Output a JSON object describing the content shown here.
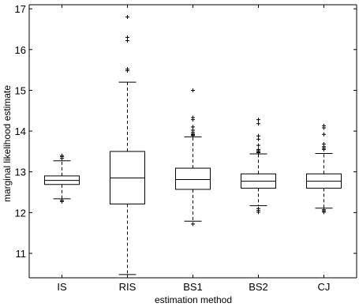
{
  "chart_data": {
    "type": "boxplot",
    "title": "",
    "xlabel": "estimation method",
    "ylabel": "marginal likelihood estimate",
    "ylim": [
      10.4,
      17.1
    ],
    "yticks": [
      11,
      12,
      13,
      14,
      15,
      16,
      17
    ],
    "grid": false,
    "categories": [
      "IS",
      "RIS",
      "BS1",
      "BS2",
      "CJ"
    ],
    "boxes": [
      {
        "category": "IS",
        "q1": 12.69,
        "median": 12.79,
        "q3": 12.9,
        "whisker_low": 12.34,
        "whisker_high": 13.27,
        "outliers": [
          13.33,
          13.37,
          13.4,
          12.3,
          12.27
        ]
      },
      {
        "category": "RIS",
        "q1": 12.21,
        "median": 12.85,
        "q3": 13.5,
        "whisker_low": 10.48,
        "whisker_high": 15.2,
        "outliers": [
          16.8,
          16.3,
          16.22,
          15.52,
          15.48
        ]
      },
      {
        "category": "BS1",
        "q1": 12.57,
        "median": 12.81,
        "q3": 13.09,
        "whisker_low": 11.79,
        "whisker_high": 13.86,
        "outliers": [
          15.0,
          14.33,
          14.28,
          14.1,
          14.02,
          13.97,
          13.93,
          13.91,
          13.89,
          11.72
        ]
      },
      {
        "category": "BS2",
        "q1": 12.6,
        "median": 12.77,
        "q3": 12.95,
        "whisker_low": 12.17,
        "whisker_high": 13.44,
        "outliers": [
          14.28,
          14.18,
          13.88,
          13.8,
          13.65,
          13.55,
          13.52,
          13.49,
          13.47,
          12.1,
          12.05,
          12.01
        ]
      },
      {
        "category": "CJ",
        "q1": 12.6,
        "median": 12.77,
        "q3": 12.95,
        "whisker_low": 12.11,
        "whisker_high": 13.45,
        "outliers": [
          14.13,
          14.08,
          13.92,
          13.68,
          13.62,
          13.58,
          13.55,
          12.07,
          12.04,
          12.01
        ]
      }
    ],
    "colors": {
      "box": "#000000",
      "median": "#000000",
      "whisker": "#000000",
      "outlier": "#000000"
    }
  }
}
